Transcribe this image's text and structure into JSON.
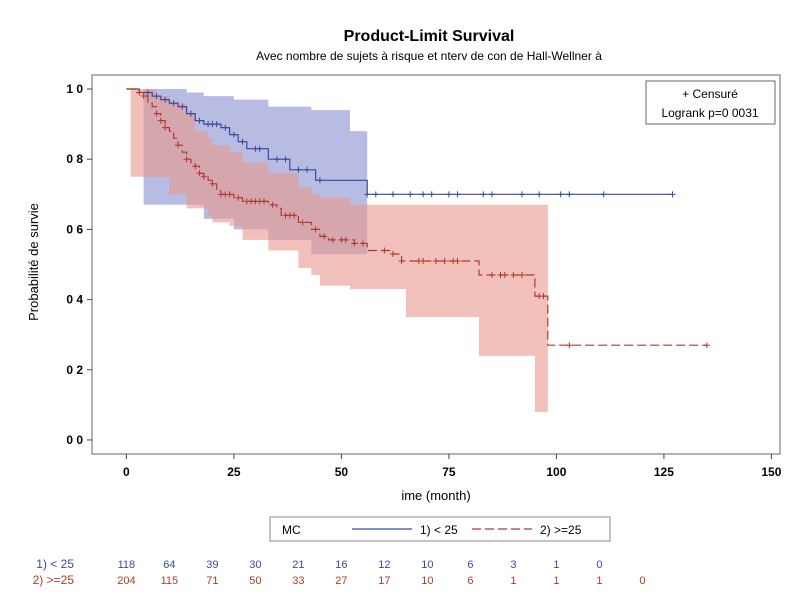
{
  "chart_data": {
    "type": "line",
    "title": "Product-Limit Survival",
    "subtitle": "Avec nombre de sujets à risque et  nterv de con   de Hall-Wellner à",
    "xlabel": "ime (month)",
    "ylabel": "Probabilité de survie",
    "xlim": [
      -8,
      152
    ],
    "ylim": [
      -0.04,
      1.04
    ],
    "x_ticks": [
      0,
      25,
      50,
      75,
      100,
      125,
      150
    ],
    "y_ticks": [
      0.0,
      0.2,
      0.4,
      0.6,
      0.8,
      1.0
    ],
    "y_tick_labels": [
      "0 0",
      "0 2",
      "0 4",
      "0 6",
      "0 8",
      "1 0"
    ],
    "inset": {
      "censored_label": "+ Censuré",
      "logrank_label": "Logrank p=0 0031"
    },
    "legend": {
      "title": "MC",
      "placement": "bottom"
    },
    "series": [
      {
        "name": "1) < 25",
        "color": "#3a4a9c",
        "band_color": "#8c93d0",
        "dash": "solid",
        "steps": [
          [
            0,
            1.0
          ],
          [
            3,
            0.99
          ],
          [
            6,
            0.98
          ],
          [
            8,
            0.97
          ],
          [
            10,
            0.96
          ],
          [
            12,
            0.95
          ],
          [
            14,
            0.93
          ],
          [
            16,
            0.91
          ],
          [
            18,
            0.9
          ],
          [
            22,
            0.89
          ],
          [
            24,
            0.87
          ],
          [
            26,
            0.85
          ],
          [
            28,
            0.83
          ],
          [
            33,
            0.8
          ],
          [
            38,
            0.77
          ],
          [
            44,
            0.74
          ],
          [
            52,
            0.74
          ],
          [
            56,
            0.7
          ],
          [
            127,
            0.7
          ]
        ],
        "band": [
          [
            0,
            1.0,
            1.0
          ],
          [
            4,
            1.0,
            0.67
          ],
          [
            14,
            0.99,
            0.67
          ],
          [
            18,
            0.98,
            0.63
          ],
          [
            22,
            0.98,
            0.63
          ],
          [
            25,
            0.97,
            0.6
          ],
          [
            33,
            0.95,
            0.57
          ],
          [
            43,
            0.94,
            0.53
          ],
          [
            52,
            0.88,
            0.53
          ],
          [
            56,
            0.88,
            0.53
          ]
        ],
        "censor_x": [
          5,
          7,
          9,
          11,
          13,
          15,
          17,
          19,
          20,
          21,
          23,
          25,
          27,
          30,
          31,
          35,
          37,
          40,
          42,
          45,
          56,
          58,
          62,
          66,
          69,
          71,
          75,
          77,
          83,
          85,
          92,
          96,
          101,
          103,
          111,
          127
        ]
      },
      {
        "name": "2) >=25",
        "color": "#b03a2e",
        "band_color": "#e89a90",
        "dash": "dashed",
        "steps": [
          [
            0,
            1.0
          ],
          [
            2,
            0.99
          ],
          [
            4,
            0.98
          ],
          [
            5,
            0.96
          ],
          [
            6,
            0.95
          ],
          [
            7,
            0.93
          ],
          [
            8,
            0.91
          ],
          [
            9,
            0.89
          ],
          [
            10,
            0.88
          ],
          [
            11,
            0.86
          ],
          [
            12,
            0.84
          ],
          [
            13,
            0.82
          ],
          [
            14,
            0.8
          ],
          [
            15,
            0.79
          ],
          [
            16,
            0.78
          ],
          [
            17,
            0.76
          ],
          [
            18,
            0.75
          ],
          [
            19,
            0.74
          ],
          [
            20,
            0.73
          ],
          [
            21,
            0.71
          ],
          [
            22,
            0.7
          ],
          [
            25,
            0.69
          ],
          [
            27,
            0.68
          ],
          [
            33,
            0.67
          ],
          [
            35,
            0.66
          ],
          [
            36,
            0.64
          ],
          [
            40,
            0.62
          ],
          [
            43,
            0.6
          ],
          [
            45,
            0.58
          ],
          [
            47,
            0.57
          ],
          [
            53,
            0.56
          ],
          [
            56,
            0.54
          ],
          [
            62,
            0.53
          ],
          [
            64,
            0.51
          ],
          [
            70,
            0.51
          ],
          [
            82,
            0.47
          ],
          [
            95,
            0.41
          ],
          [
            98,
            0.27
          ],
          [
            135,
            0.27
          ]
        ],
        "band": [
          [
            0,
            1.0,
            1.0
          ],
          [
            1,
            1.0,
            0.75
          ],
          [
            5,
            1.0,
            0.75
          ],
          [
            7,
            0.98,
            0.75
          ],
          [
            10,
            0.96,
            0.7
          ],
          [
            14,
            0.93,
            0.66
          ],
          [
            16,
            0.88,
            0.66
          ],
          [
            19,
            0.86,
            0.64
          ],
          [
            20,
            0.84,
            0.62
          ],
          [
            24,
            0.82,
            0.61
          ],
          [
            27,
            0.79,
            0.57
          ],
          [
            33,
            0.76,
            0.54
          ],
          [
            40,
            0.72,
            0.49
          ],
          [
            43,
            0.7,
            0.47
          ],
          [
            45,
            0.69,
            0.44
          ],
          [
            52,
            0.67,
            0.43
          ],
          [
            56,
            0.67,
            0.43
          ],
          [
            65,
            0.67,
            0.35
          ],
          [
            82,
            0.67,
            0.24
          ],
          [
            95,
            0.67,
            0.08
          ],
          [
            98,
            0.67,
            0.08
          ]
        ],
        "censor_x": [
          3,
          4,
          7,
          8,
          9,
          12,
          14,
          16,
          17,
          18,
          20,
          22,
          23,
          24,
          26,
          28,
          29,
          30,
          31,
          32,
          34,
          37,
          38,
          39,
          41,
          44,
          46,
          48,
          50,
          51,
          53,
          55,
          60,
          62,
          64,
          68,
          69,
          72,
          74,
          76,
          77,
          85,
          87,
          88,
          90,
          92,
          96,
          97,
          103,
          135
        ]
      }
    ],
    "risk_table": {
      "x": [
        0,
        10,
        20,
        30,
        40,
        50,
        60,
        70,
        80,
        90,
        100,
        110,
        120,
        130
      ],
      "rows": [
        {
          "label": "1) < 25",
          "color": "#3a4a9c",
          "values": [
            "118",
            "64",
            "39",
            "30",
            "21",
            "16",
            "12",
            "10",
            "6",
            "3",
            "1",
            "0"
          ]
        },
        {
          "label": "2) >=25",
          "color": "#b03a2e",
          "values": [
            "204",
            "115",
            "71",
            "50",
            "33",
            "27",
            "17",
            "10",
            "6",
            "1",
            "1",
            "1",
            "0"
          ]
        }
      ]
    }
  }
}
